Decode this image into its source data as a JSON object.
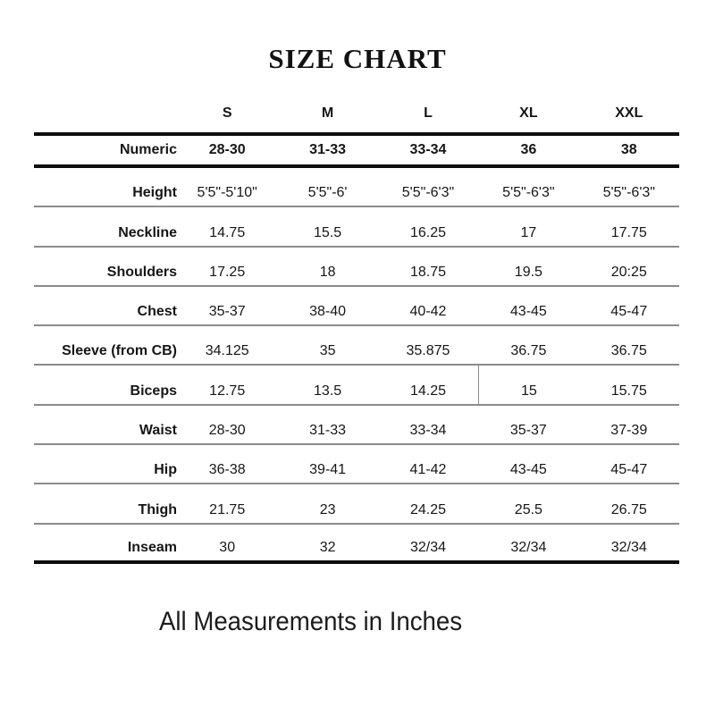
{
  "title": "SIZE CHART",
  "footer_note": "All Measurements in Inches",
  "colors": {
    "thick_rule": "#0d0d0d",
    "thin_rule": "#8b8b8b",
    "text": "#161616"
  },
  "chart_data": {
    "type": "table",
    "title": "SIZE CHART",
    "note": "All Measurements in Inches",
    "columns": [
      "S",
      "M",
      "L",
      "XL",
      "XXL"
    ],
    "numeric_row": {
      "label": "Numeric",
      "values": [
        "28-30",
        "31-33",
        "33-34",
        "36",
        "38"
      ]
    },
    "rows": [
      {
        "label": "Height",
        "values": [
          "5'5\"-5'10\"",
          "5'5\"-6'",
          "5'5\"-6'3\"",
          "5'5\"-6'3\"",
          "5'5\"-6'3\""
        ]
      },
      {
        "label": "Neckline",
        "values": [
          "14.75",
          "15.5",
          "16.25",
          "17",
          "17.75"
        ]
      },
      {
        "label": "Shoulders",
        "values": [
          "17.25",
          "18",
          "18.75",
          "19.5",
          "20:25"
        ]
      },
      {
        "label": "Chest",
        "values": [
          "35-37",
          "38-40",
          "40-42",
          "43-45",
          "45-47"
        ]
      },
      {
        "label": "Sleeve (from CB)",
        "values": [
          "34.125",
          "35",
          "35.875",
          "36.75",
          "36.75"
        ]
      },
      {
        "label": "Biceps",
        "values": [
          "12.75",
          "13.5",
          "14.25",
          "15",
          "15.75"
        ]
      },
      {
        "label": "Waist",
        "values": [
          "28-30",
          "31-33",
          "33-34",
          "35-37",
          "37-39"
        ]
      },
      {
        "label": "Hip",
        "values": [
          "36-38",
          "39-41",
          "41-42",
          "43-45",
          "45-47"
        ]
      },
      {
        "label": "Thigh",
        "values": [
          "21.75",
          "23",
          "24.25",
          "25.5",
          "26.75"
        ]
      },
      {
        "label": "Inseam",
        "values": [
          "30",
          "32",
          "32/34",
          "32/34",
          "32/34"
        ]
      }
    ]
  }
}
